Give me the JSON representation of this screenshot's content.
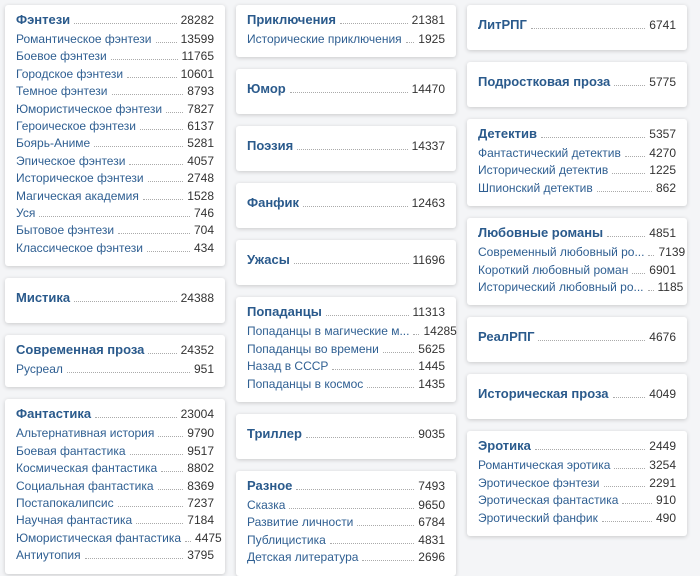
{
  "columns": [
    [
      {
        "title": "Фэнтези",
        "count": 28282,
        "items": [
          {
            "name": "Романтическое фэнтези",
            "count": 13599
          },
          {
            "name": "Боевое фэнтези",
            "count": 11765
          },
          {
            "name": "Городское фэнтези",
            "count": 10601
          },
          {
            "name": "Темное фэнтези",
            "count": 8793
          },
          {
            "name": "Юмористическое фэнтези",
            "count": 7827
          },
          {
            "name": "Героическое фэнтези",
            "count": 6137
          },
          {
            "name": "Боярь-Аниме",
            "count": 5281
          },
          {
            "name": "Эпическое фэнтези",
            "count": 4057
          },
          {
            "name": "Историческое фэнтези",
            "count": 2748
          },
          {
            "name": "Магическая академия",
            "count": 1528
          },
          {
            "name": "Уся",
            "count": 746
          },
          {
            "name": "Бытовое фэнтези",
            "count": 704
          },
          {
            "name": "Классическое фэнтези",
            "count": 434
          }
        ]
      },
      {
        "title": "Мистика",
        "count": 24388,
        "items": []
      },
      {
        "title": "Современная проза",
        "count": 24352,
        "items": [
          {
            "name": "Русреал",
            "count": 951
          }
        ]
      },
      {
        "title": "Фантастика",
        "count": 23004,
        "items": [
          {
            "name": "Альтернативная история",
            "count": 9790
          },
          {
            "name": "Боевая фантастика",
            "count": 9517
          },
          {
            "name": "Космическая фантастика",
            "count": 8802
          },
          {
            "name": "Социальная фантастика",
            "count": 8369
          },
          {
            "name": "Постапокалипсис",
            "count": 7237
          },
          {
            "name": "Научная фантастика",
            "count": 7184
          },
          {
            "name": "Юмористическая фантастика",
            "count": 4475
          },
          {
            "name": "Антиутопия",
            "count": 3795
          }
        ]
      }
    ],
    [
      {
        "title": "Приключения",
        "count": 21381,
        "items": [
          {
            "name": "Исторические приключения",
            "count": 1925
          }
        ]
      },
      {
        "title": "Юмор",
        "count": 14470,
        "items": []
      },
      {
        "title": "Поэзия",
        "count": 14337,
        "items": []
      },
      {
        "title": "Фанфик",
        "count": 12463,
        "items": []
      },
      {
        "title": "Ужасы",
        "count": 11696,
        "items": []
      },
      {
        "title": "Попаданцы",
        "count": 11313,
        "items": [
          {
            "name": "Попаданцы в магические м...",
            "count": 14285
          },
          {
            "name": "Попаданцы во времени",
            "count": 5625
          },
          {
            "name": "Назад в СССР",
            "count": 1445
          },
          {
            "name": "Попаданцы в космос",
            "count": 1435
          }
        ]
      },
      {
        "title": "Триллер",
        "count": 9035,
        "items": []
      },
      {
        "title": "Разное",
        "count": 7493,
        "items": [
          {
            "name": "Сказка",
            "count": 9650
          },
          {
            "name": "Развитие личности",
            "count": 6784
          },
          {
            "name": "Публицистика",
            "count": 4831
          },
          {
            "name": "Детская литература",
            "count": 2696
          }
        ]
      }
    ],
    [
      {
        "title": "ЛитРПГ",
        "count": 6741,
        "items": []
      },
      {
        "title": "Подростковая проза",
        "count": 5775,
        "items": []
      },
      {
        "title": "Детектив",
        "count": 5357,
        "items": [
          {
            "name": "Фантастический детектив",
            "count": 4270
          },
          {
            "name": "Исторический детектив",
            "count": 1225
          },
          {
            "name": "Шпионский детектив",
            "count": 862
          }
        ]
      },
      {
        "title": "Любовные романы",
        "count": 4851,
        "items": [
          {
            "name": "Современный любовный ро...",
            "count": 7139
          },
          {
            "name": "Короткий любовный роман",
            "count": 6901
          },
          {
            "name": "Исторический любовный ро...",
            "count": 1185
          }
        ]
      },
      {
        "title": "РеалРПГ",
        "count": 4676,
        "items": []
      },
      {
        "title": "Историческая проза",
        "count": 4049,
        "items": []
      },
      {
        "title": "Эротика",
        "count": 2449,
        "items": [
          {
            "name": "Романтическая эротика",
            "count": 3254
          },
          {
            "name": "Эротическое фэнтези",
            "count": 2291
          },
          {
            "name": "Эротическая фантастика",
            "count": 910
          },
          {
            "name": "Эротический фанфик",
            "count": 490
          }
        ]
      }
    ]
  ]
}
